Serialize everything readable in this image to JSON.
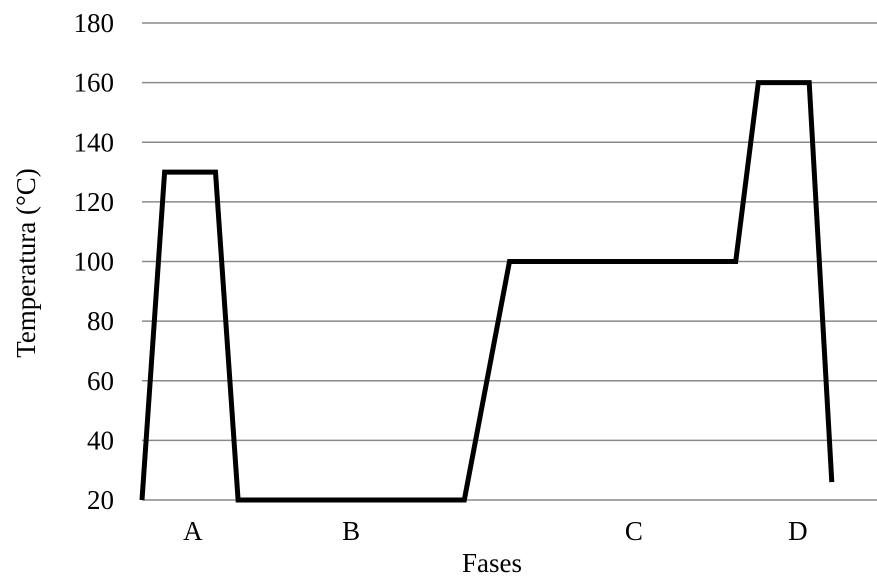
{
  "chart_data": {
    "type": "line",
    "xlabel": "Fases",
    "ylabel": "Temperatura (°C)",
    "ylim": [
      20,
      180
    ],
    "yticks": [
      20,
      40,
      60,
      80,
      100,
      120,
      140,
      160,
      180
    ],
    "y_tick_labels": [
      "20",
      "40",
      "60",
      "80",
      "100",
      "120",
      "140",
      "160",
      "180"
    ],
    "phase_labels": [
      {
        "label": "A",
        "x": 0.9
      },
      {
        "label": "B",
        "x": 3.7
      },
      {
        "label": "C",
        "x": 8.7
      },
      {
        "label": "D",
        "x": 11.6
      }
    ],
    "xlim": [
      0,
      13
    ],
    "grid": "horizontal",
    "series": [
      {
        "x": [
          0.0,
          0.4,
          1.3,
          1.7,
          5.7,
          6.5,
          10.5,
          10.9,
          11.8,
          12.2
        ],
        "y": [
          20,
          130,
          130,
          20,
          20,
          100,
          100,
          160,
          160,
          26
        ],
        "color": "#000000"
      }
    ]
  }
}
